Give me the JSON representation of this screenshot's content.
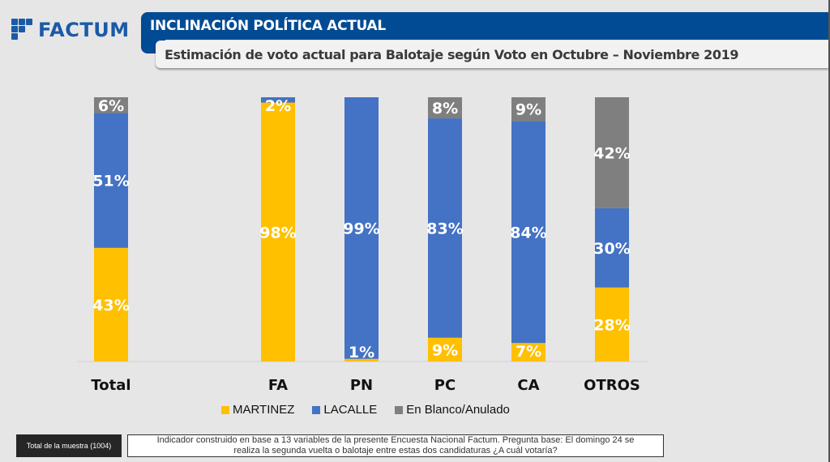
{
  "brand": {
    "name": "FACTUM",
    "logo_icon": "factum-logo-icon"
  },
  "header": {
    "title": "INCLINACIÓN POLÍTICA ACTUAL",
    "subtitle": "Estimación de voto actual para Balotaje según Voto en Octubre – Noviembre 2019"
  },
  "colors": {
    "martinez": "#ffc000",
    "lacalle": "#4472c4",
    "blanco": "#7f7f7f",
    "header_blue": "#004b93"
  },
  "chart_data": {
    "type": "bar",
    "stacked": true,
    "title": "Estimación de voto actual para Balotaje según Voto en Octubre – Noviembre 2019",
    "xlabel": "",
    "ylabel": "",
    "ylim": [
      0,
      100
    ],
    "grid": false,
    "legend_position": "bottom",
    "categories": [
      "Total",
      "FA",
      "PN",
      "PC",
      "CA",
      "OTROS"
    ],
    "series": [
      {
        "name": "MARTINEZ",
        "color": "#ffc000",
        "values": [
          43,
          98,
          1,
          9,
          7,
          28
        ],
        "labels": [
          "43%",
          "98%",
          "",
          "9%",
          "7%",
          "28%"
        ]
      },
      {
        "name": "LACALLE",
        "color": "#4472c4",
        "values": [
          51,
          2,
          99,
          83,
          84,
          30
        ],
        "labels": [
          "51%",
          "2%",
          "99%",
          "83%",
          "84%",
          "30%"
        ]
      },
      {
        "name": "En Blanco/Anulado",
        "color": "#7f7f7f",
        "values": [
          6,
          0,
          0,
          8,
          9,
          42
        ],
        "labels": [
          "6%",
          "",
          "",
          "8%",
          "9%",
          "42%"
        ]
      }
    ],
    "extra_labels": [
      {
        "category": "PN",
        "text": "1%"
      }
    ]
  },
  "legend": {
    "items": [
      {
        "label": "MARTINEZ",
        "color": "#ffc000"
      },
      {
        "label": "LACALLE",
        "color": "#4472c4"
      },
      {
        "label": "En Blanco/Anulado",
        "color": "#7f7f7f"
      }
    ]
  },
  "footer": {
    "sample_label": "Total de la muestra (1004)",
    "note_line1": "Indicador construido en base a 13 variables de la presente Encuesta Nacional Factum. Pregunta base: El domingo 24 se",
    "note_line2": "realiza la segunda vuelta o balotaje entre estas dos candidaturas ¿A cuál votaría?"
  }
}
